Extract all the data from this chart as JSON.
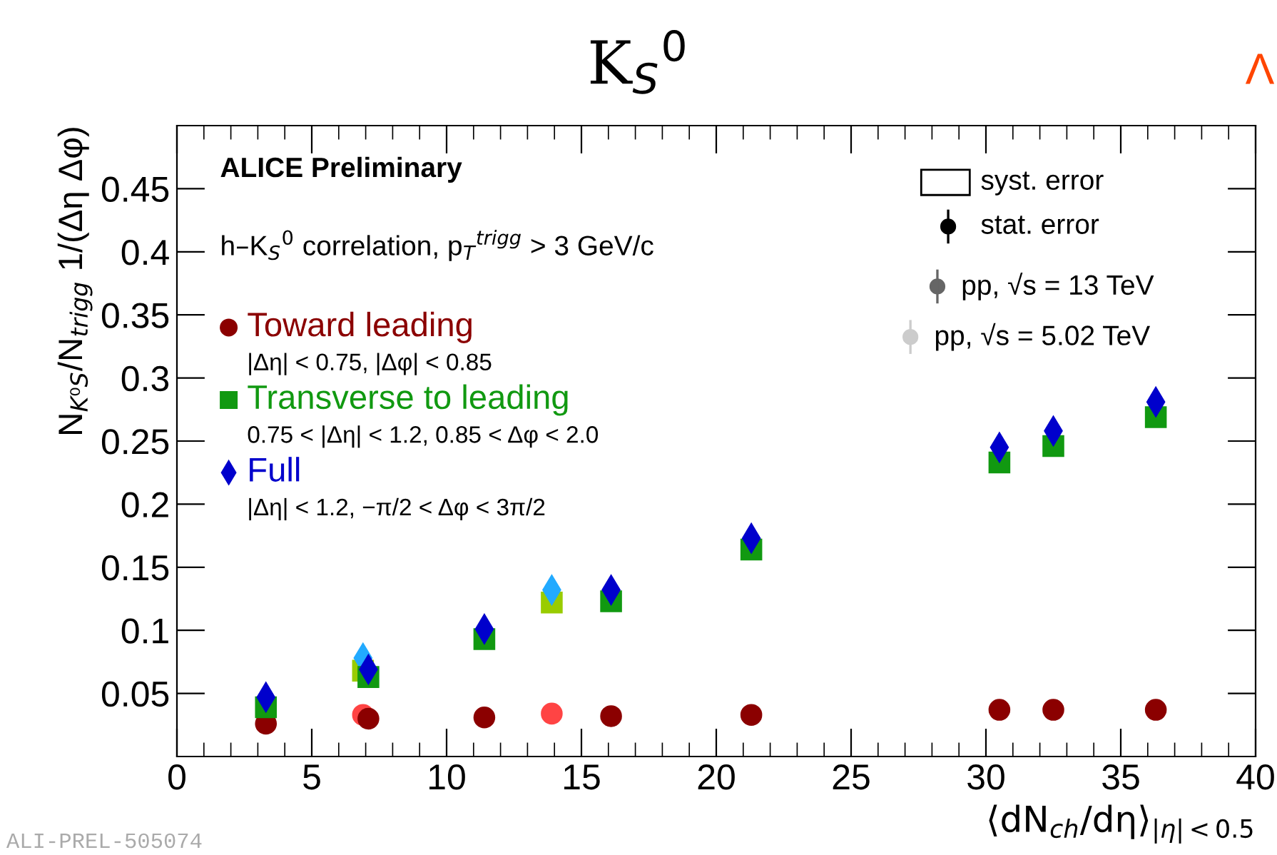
{
  "chart_data": {
    "type": "scatter",
    "title": "K$_{S}$$^{0}$",
    "xlabel": "⟨dN$_{ch}$/dη⟩$_{|η|<0.5}$",
    "ylabel": "N$_{K⁰S}$/N$_{trigg}$ 1/(Δη Δφ)",
    "xlim": [
      0,
      40
    ],
    "xticks": [
      0,
      5,
      10,
      15,
      20,
      25,
      30,
      35,
      40
    ],
    "ylim": [
      0,
      0.5
    ],
    "yticks": [
      {
        "value": 0.05,
        "label": "0.05"
      },
      {
        "value": 0.1,
        "label": "0.1"
      },
      {
        "value": 0.15,
        "label": "0.15"
      },
      {
        "value": 0.2,
        "label": "0.2"
      },
      {
        "value": 0.25,
        "label": "0.25"
      },
      {
        "value": 0.3,
        "label": "0.3"
      },
      {
        "value": 0.35,
        "label": "0.35"
      },
      {
        "value": 0.4,
        "label": "0.4"
      },
      {
        "value": 0.45,
        "label": "0.45"
      }
    ],
    "grid": false,
    "legend": "top left",
    "series": [
      {
        "name": "Toward leading",
        "color": "#8b0000",
        "marker": "circle",
        "x": [
          3.3,
          7.1,
          11.4,
          16.1,
          21.3,
          30.5,
          32.5,
          36.3
        ],
        "values": [
          0.026,
          0.03,
          0.031,
          0.032,
          0.033,
          0.037,
          0.037,
          0.037
        ]
      },
      {
        "name": "Transverse to leading",
        "color": "#119911",
        "marker": "square",
        "x": [
          3.3,
          7.1,
          11.4,
          16.1,
          21.3,
          30.5,
          32.5,
          36.3
        ],
        "values": [
          0.039,
          0.063,
          0.093,
          0.123,
          0.164,
          0.233,
          0.246,
          0.269
        ]
      },
      {
        "name": "Full",
        "color": "#0000cc",
        "marker": "diamond",
        "x": [
          3.3,
          7.1,
          11.4,
          16.1,
          21.3,
          30.5,
          32.5,
          36.3
        ],
        "values": [
          0.047,
          0.069,
          0.101,
          0.132,
          0.173,
          0.245,
          0.258,
          0.281
        ]
      },
      {
        "color": "#ff4444",
        "marker": "circle",
        "x": [
          6.9,
          13.9
        ],
        "values": [
          0.033,
          0.034
        ]
      },
      {
        "color": "#99cc00",
        "marker": "square",
        "x": [
          6.9,
          13.9
        ],
        "values": [
          0.068,
          0.122
        ]
      },
      {
        "color": "#22aaff",
        "marker": "diamond",
        "x": [
          6.9,
          13.9
        ],
        "values": [
          0.078,
          0.132
        ]
      }
    ],
    "annotations": [
      "ALICE Preliminary",
      "h–K$_{S}$$^{0}$ correlation, p$_{T}$$^{trigg}$ > 3 GeV/c",
      "|Δη| < 0.75, |Δφ| < 0.85",
      "0.75 < |Δη| < 1.2, 0.85 < Δφ < 2.0",
      "|Δη| < 1.2, −π/2 < Δφ < 3π/2",
      "syst. error",
      "stat. error",
      "pp, √s = 13 TeV",
      "pp, √s = 5.02 TeV",
      "ALI-PREL-505074",
      "Λ"
    ]
  }
}
